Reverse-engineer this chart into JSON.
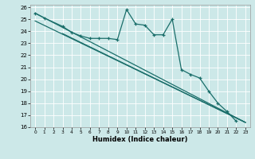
{
  "xlabel": "Humidex (Indice chaleur)",
  "bg_color": "#cce8e8",
  "grid_color": "#ffffff",
  "line_color": "#1a6e6a",
  "xlim": [
    -0.5,
    23.5
  ],
  "ylim": [
    16,
    26.2
  ],
  "yticks": [
    16,
    17,
    18,
    19,
    20,
    21,
    22,
    23,
    24,
    25,
    26
  ],
  "xticks": [
    0,
    1,
    2,
    3,
    4,
    5,
    6,
    7,
    8,
    9,
    10,
    11,
    12,
    13,
    14,
    15,
    16,
    17,
    18,
    19,
    20,
    21,
    22,
    23
  ],
  "zigzag_x": [
    0,
    1,
    3,
    4,
    5,
    6,
    7,
    8,
    9,
    10,
    11,
    12,
    13,
    14,
    15,
    16,
    17,
    18,
    19,
    20,
    21,
    22
  ],
  "zigzag_y": [
    25.5,
    25.1,
    24.4,
    23.9,
    23.6,
    23.4,
    23.4,
    23.4,
    23.3,
    25.8,
    24.6,
    24.5,
    23.7,
    23.7,
    25.0,
    20.8,
    20.4,
    20.1,
    19.0,
    18.0,
    17.3,
    16.5
  ],
  "line1_x": [
    0,
    23
  ],
  "line1_y": [
    25.5,
    16.4
  ],
  "line2_x": [
    0,
    23
  ],
  "line2_y": [
    24.85,
    16.4
  ],
  "line3_x": [
    3,
    23
  ],
  "line3_y": [
    23.8,
    16.4
  ]
}
